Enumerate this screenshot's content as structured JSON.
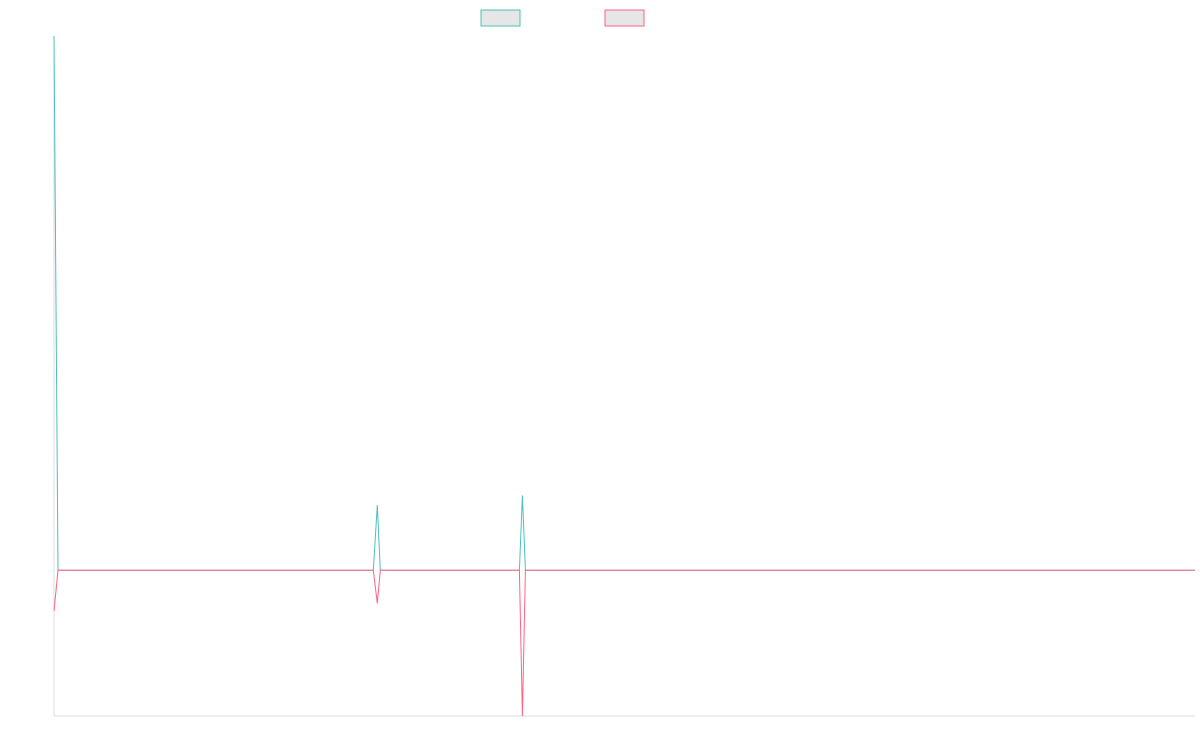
{
  "chart_data": {
    "type": "line",
    "title": "",
    "xlabel": "",
    "ylabel": "",
    "x_range": [
      0,
      1140
    ],
    "ylim": [
      -150,
      550
    ],
    "grid": false,
    "legend_placement": "top-center",
    "series": [
      {
        "color": "#4bc0c0",
        "points": [
          [
            0,
            550
          ],
          [
            4,
            0
          ],
          [
            319,
            0
          ],
          [
            323,
            67
          ],
          [
            326,
            0
          ],
          [
            465,
            0
          ],
          [
            468,
            77
          ],
          [
            471,
            0
          ],
          [
            1140,
            0
          ]
        ]
      },
      {
        "color": "#ff6384",
        "points": [
          [
            0,
            -42
          ],
          [
            4,
            0
          ],
          [
            319,
            0
          ],
          [
            323,
            -34
          ],
          [
            326,
            0
          ],
          [
            465,
            0
          ],
          [
            468,
            -150
          ],
          [
            471,
            0
          ],
          [
            1140,
            0
          ]
        ]
      }
    ]
  }
}
